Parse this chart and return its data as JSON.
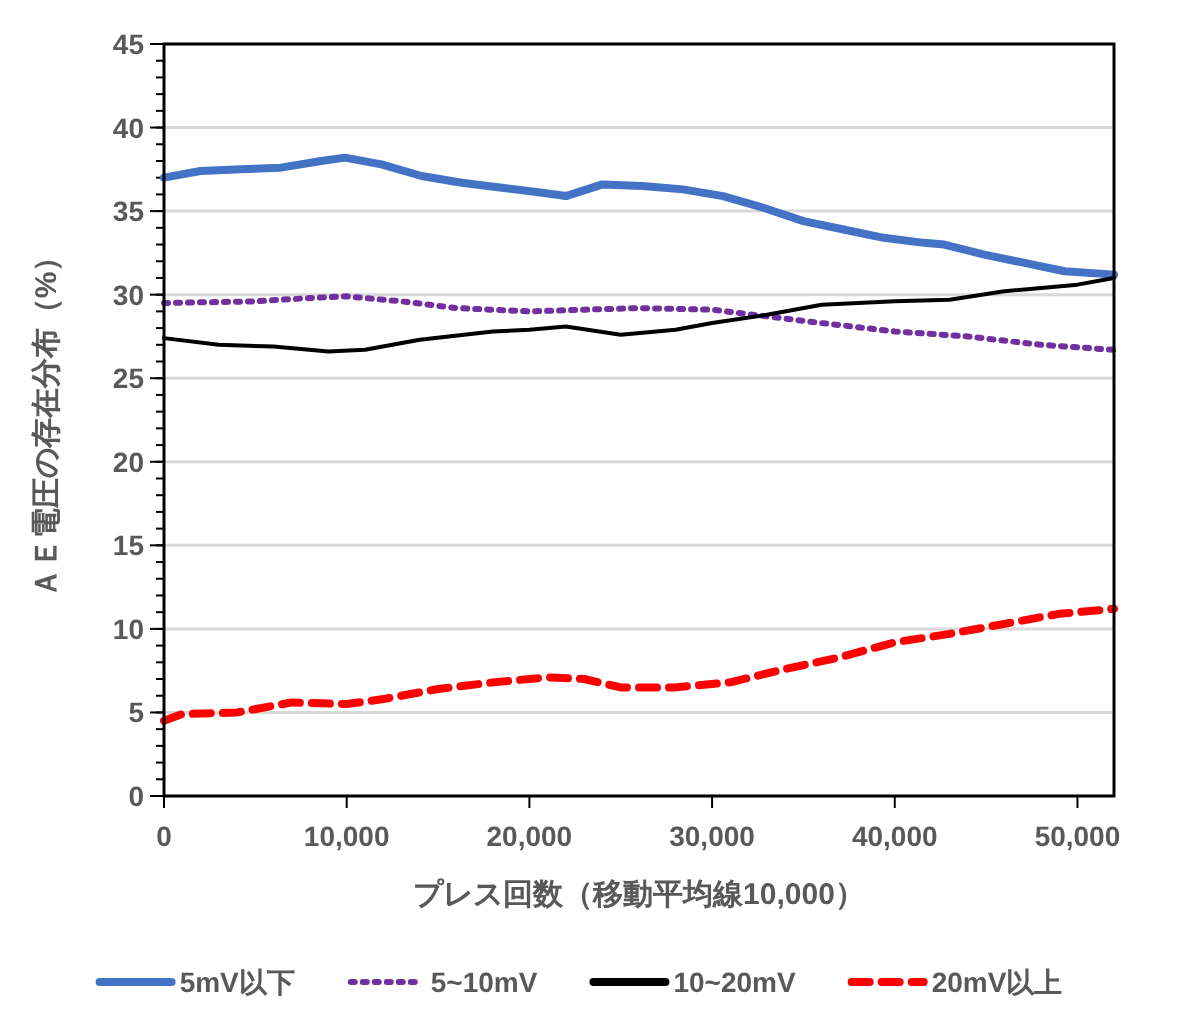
{
  "chart_data": {
    "type": "line",
    "xlabel": "プレス回数（移動平均線10,000）",
    "ylabel": "ＡＥ電圧の存在分布（%）",
    "xlim": [
      0,
      52000
    ],
    "xticks": [
      {
        "value": 0,
        "label": "0"
      },
      {
        "value": 10000,
        "label": "10,000"
      },
      {
        "value": 20000,
        "label": "20,000"
      },
      {
        "value": 30000,
        "label": "30,000"
      },
      {
        "value": 40000,
        "label": "40,000"
      },
      {
        "value": 50000,
        "label": "50,000"
      }
    ],
    "ylim": [
      0,
      45
    ],
    "yticks": [
      0,
      5,
      10,
      15,
      20,
      25,
      30,
      35,
      40,
      45
    ],
    "grid": "y",
    "legend": "bottom",
    "marker": "none",
    "series": [
      {
        "name": "5mV以下",
        "color": "#4472c4",
        "line_style": "solid",
        "x": [
          0,
          2000,
          4200,
          6400,
          8600,
          9900,
          11900,
          14100,
          16300,
          18500,
          20700,
          22000,
          24000,
          26200,
          28400,
          30600,
          32800,
          35000,
          37200,
          39400,
          41600,
          42700,
          44900,
          47100,
          49300,
          52000
        ],
        "values": [
          37.0,
          37.4,
          37.5,
          37.6,
          38.0,
          38.2,
          37.8,
          37.1,
          36.7,
          36.4,
          36.1,
          35.9,
          36.6,
          36.5,
          36.3,
          35.9,
          35.2,
          34.4,
          33.9,
          33.4,
          33.1,
          33.0,
          32.4,
          31.9,
          31.4,
          31.2
        ]
      },
      {
        "name": "5~10mV",
        "color": "#7030a0",
        "line_style": "dotted",
        "x": [
          0,
          5000,
          8000,
          10000,
          13000,
          16000,
          20000,
          23000,
          26000,
          30000,
          33000,
          36000,
          40000,
          44000,
          48000,
          52000
        ],
        "values": [
          29.5,
          29.6,
          29.8,
          29.9,
          29.6,
          29.2,
          29.0,
          29.1,
          29.2,
          29.1,
          28.7,
          28.3,
          27.8,
          27.5,
          27.0,
          26.7
        ]
      },
      {
        "name": "10~20mV",
        "color": "#000000",
        "line_style": "solid",
        "x": [
          0,
          3000,
          6000,
          9000,
          11000,
          14000,
          18000,
          20000,
          22000,
          25000,
          28000,
          30000,
          33000,
          36000,
          40000,
          43000,
          46000,
          50000,
          52000
        ],
        "values": [
          27.4,
          27.0,
          26.9,
          26.6,
          26.7,
          27.3,
          27.8,
          27.9,
          28.1,
          27.6,
          27.9,
          28.3,
          28.8,
          29.4,
          29.6,
          29.7,
          30.2,
          30.6,
          31.0
        ]
      },
      {
        "name": "20mV以上",
        "color": "#ff0000",
        "line_style": "dashed",
        "x": [
          0,
          1000,
          4000,
          7000,
          10000,
          12000,
          15000,
          18000,
          21000,
          23000,
          25000,
          28000,
          31000,
          34000,
          37000,
          40000,
          43000,
          46000,
          49000,
          52000
        ],
        "values": [
          4.5,
          4.9,
          5.0,
          5.6,
          5.5,
          5.8,
          6.4,
          6.8,
          7.1,
          7.0,
          6.5,
          6.5,
          6.8,
          7.6,
          8.3,
          9.2,
          9.7,
          10.3,
          10.9,
          11.2
        ]
      }
    ]
  }
}
